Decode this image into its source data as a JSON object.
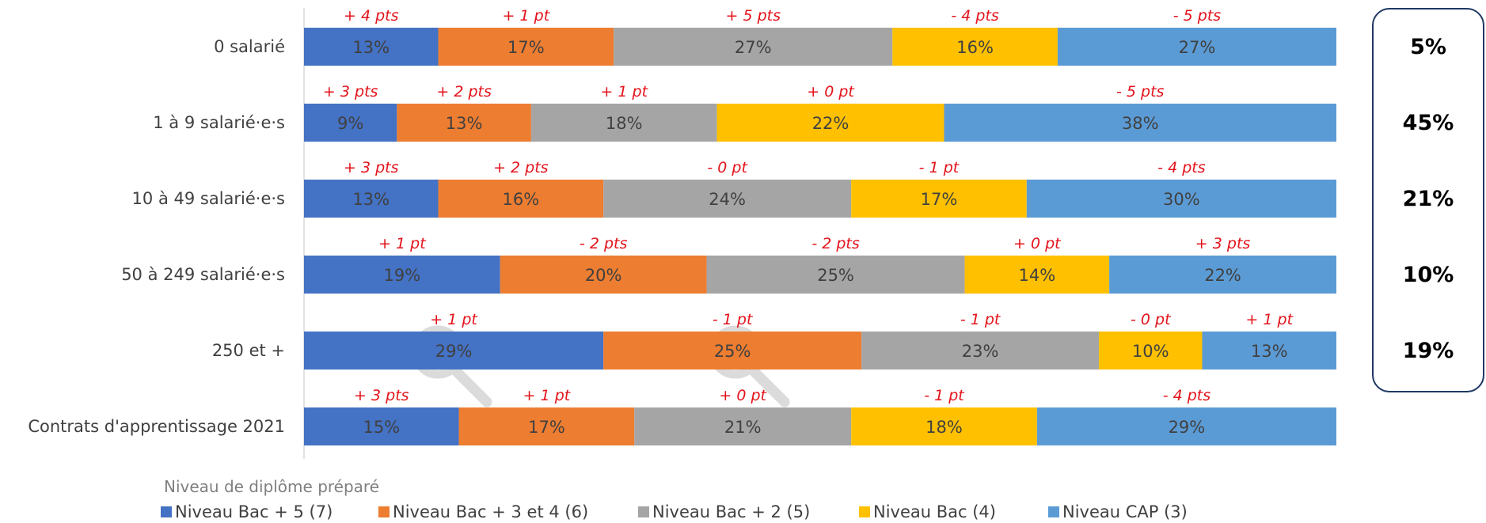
{
  "chart_data": {
    "type": "bar",
    "orientation": "horizontal",
    "stacked": true,
    "normalized_100": true,
    "categories": [
      "0 salarié",
      "1 à 9 salarié·e·s",
      "10 à 49 salarié·e·s",
      "50 à 249 salarié·e·s",
      "250 et +",
      "Contrats d'apprentissage 2021"
    ],
    "series": [
      {
        "name": "Niveau Bac + 5 (7)",
        "color": "#4472c4",
        "values": [
          13,
          9,
          13,
          19,
          29,
          15
        ],
        "labels": [
          "13%",
          "9%",
          "13%",
          "19%",
          "29%",
          "15%"
        ],
        "deltas": [
          "+ 4 pts",
          "+ 3 pts",
          "+ 3 pts",
          "+ 1 pt",
          "+ 1 pt",
          "+ 3 pts"
        ]
      },
      {
        "name": "Niveau Bac + 3 et 4 (6)",
        "color": "#ed7d31",
        "values": [
          17,
          13,
          16,
          20,
          25,
          17
        ],
        "labels": [
          "17%",
          "13%",
          "16%",
          "20%",
          "25%",
          "17%"
        ],
        "deltas": [
          "+ 1 pt",
          "+ 2 pts",
          "+ 2 pts",
          "- 2 pts",
          "- 1 pt",
          "+ 1 pt"
        ]
      },
      {
        "name": "Niveau Bac + 2 (5)",
        "color": "#a5a5a5",
        "values": [
          27,
          18,
          24,
          25,
          23,
          21
        ],
        "labels": [
          "27%",
          "18%",
          "24%",
          "25%",
          "23%",
          "21%"
        ],
        "deltas": [
          "+ 5 pts",
          "+ 1 pt",
          "- 0 pt",
          "- 2 pts",
          "- 1 pt",
          "+ 0 pt"
        ]
      },
      {
        "name": "Niveau Bac (4)",
        "color": "#ffc000",
        "values": [
          16,
          22,
          17,
          14,
          10,
          18
        ],
        "labels": [
          "16%",
          "22%",
          "17%",
          "14%",
          "10%",
          "18%"
        ],
        "deltas": [
          "- 4 pts",
          "+ 0 pt",
          "- 1 pt",
          "+ 0 pt",
          "- 0 pt",
          "- 1 pt"
        ]
      },
      {
        "name": "Niveau CAP (3)",
        "color": "#5b9bd5",
        "values": [
          27,
          38,
          30,
          22,
          13,
          29
        ],
        "labels": [
          "27%",
          "38%",
          "30%",
          "22%",
          "13%",
          "29%"
        ],
        "deltas": [
          "- 5 pts",
          "- 5 pts",
          "- 4 pts",
          "+ 3 pts",
          "+ 1 pt",
          "- 4 pts"
        ]
      }
    ],
    "legend_title": "Niveau de diplôme préparé",
    "legend_position": "bottom",
    "side_values": [
      "5%",
      "45%",
      "21%",
      "10%",
      "19%"
    ],
    "grid": false
  }
}
